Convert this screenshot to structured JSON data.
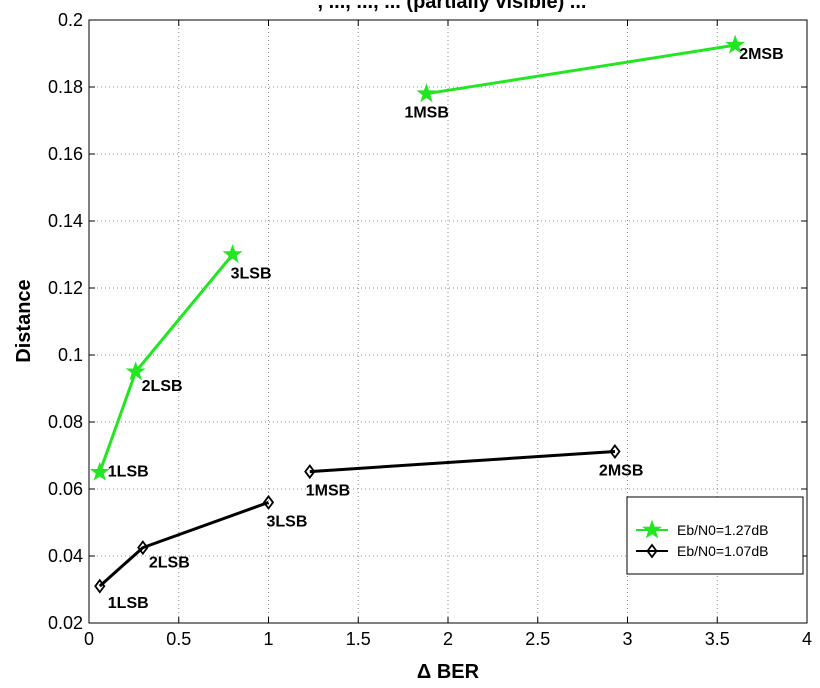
{
  "chart_data": {
    "type": "line",
    "title": ", ..., ..., ... (partially visible) ...",
    "xlabel": "Δ BER",
    "ylabel": "Distance",
    "xlim": [
      0,
      4
    ],
    "ylim": [
      0.02,
      0.2
    ],
    "xticks": [
      0,
      0.5,
      1,
      1.5,
      2,
      2.5,
      3,
      3.5,
      4
    ],
    "xtick_labels": [
      "0",
      "0.5",
      "1",
      "1.5",
      "2",
      "2.5",
      "3",
      "3.5",
      "4"
    ],
    "yticks": [
      0.02,
      0.04,
      0.06,
      0.08,
      0.1,
      0.12,
      0.14,
      0.16,
      0.18,
      0.2
    ],
    "ytick_labels": [
      "0.02",
      "0.04",
      "0.06",
      "0.08",
      "0.1",
      "0.12",
      "0.14",
      "0.16",
      "0.18",
      "0.2"
    ],
    "grid": true,
    "legend_position": "bottom-right",
    "series": [
      {
        "name": "Eb/N0=1.27dB",
        "color": "#22e622",
        "marker": "star",
        "segments": [
          {
            "points": [
              {
                "x": 0.06,
                "y": 0.065,
                "label": "1LSB"
              },
              {
                "x": 0.26,
                "y": 0.095,
                "label": "2LSB"
              },
              {
                "x": 0.8,
                "y": 0.13,
                "label": "3LSB"
              }
            ]
          },
          {
            "points": [
              {
                "x": 1.88,
                "y": 0.178,
                "label": "1MSB"
              },
              {
                "x": 3.6,
                "y": 0.1925,
                "label": "2MSB"
              }
            ]
          }
        ]
      },
      {
        "name": "Eb/N0=1.07dB",
        "color": "#000000",
        "marker": "diamond",
        "segments": [
          {
            "points": [
              {
                "x": 0.06,
                "y": 0.031,
                "label": "1LSB"
              },
              {
                "x": 0.3,
                "y": 0.0425,
                "label": "2LSB"
              },
              {
                "x": 1.0,
                "y": 0.056,
                "label": "3LSB"
              }
            ]
          },
          {
            "points": [
              {
                "x": 1.23,
                "y": 0.0652,
                "label": "1MSB"
              },
              {
                "x": 2.93,
                "y": 0.0712,
                "label": "2MSB"
              }
            ]
          }
        ]
      }
    ]
  }
}
